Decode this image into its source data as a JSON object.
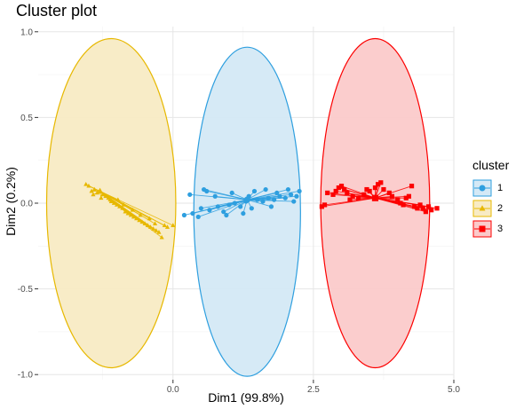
{
  "chart_data": {
    "type": "scatter",
    "title": "Cluster plot",
    "xlabel": "Dim1 (99.8%)",
    "ylabel": "Dim2 (0.2%)",
    "xlim": [
      -2.4,
      5.0
    ],
    "ylim": [
      -1.03,
      1.03
    ],
    "xticks": [
      0.0,
      2.5,
      5.0
    ],
    "xtick_labels": [
      "0.0",
      "2.5",
      "5.0"
    ],
    "yticks": [
      -1.0,
      -0.5,
      0.0,
      0.5,
      1.0
    ],
    "ytick_labels": [
      "-1.0",
      "-0.5",
      "0.0",
      "0.5",
      "1.0"
    ],
    "grid": true,
    "legend": {
      "title": "cluster",
      "placement": "right",
      "entries": [
        {
          "label": "1",
          "color": "#2E9FDF",
          "shape": "circle"
        },
        {
          "label": "2",
          "color": "#E7B800",
          "shape": "triangle"
        },
        {
          "label": "3",
          "color": "#FC0000",
          "shape": "square"
        }
      ]
    },
    "series": [
      {
        "name": "1",
        "color": "#2E9FDF",
        "fill": "#D4E9F6",
        "shape": "circle",
        "centroid": [
          1.32,
          0.02
        ],
        "ellipse": {
          "cx": 1.32,
          "cy": -0.05,
          "rx": 0.95,
          "ry": 0.96
        },
        "points": [
          [
            0.2,
            -0.07
          ],
          [
            0.35,
            -0.06
          ],
          [
            0.5,
            -0.03
          ],
          [
            0.65,
            -0.04
          ],
          [
            0.8,
            -0.02
          ],
          [
            0.9,
            -0.05
          ],
          [
            1.0,
            -0.01
          ],
          [
            1.1,
            0.0
          ],
          [
            1.2,
            -0.02
          ],
          [
            1.3,
            0.01
          ],
          [
            1.4,
            -0.03
          ],
          [
            1.5,
            0.02
          ],
          [
            1.6,
            0.01
          ],
          [
            1.7,
            0.03
          ],
          [
            1.8,
            0.02
          ],
          [
            1.9,
            0.04
          ],
          [
            2.0,
            0.03
          ],
          [
            2.1,
            0.05
          ],
          [
            2.2,
            0.04
          ],
          [
            0.3,
            0.05
          ],
          [
            0.45,
            -0.08
          ],
          [
            0.6,
            0.07
          ],
          [
            0.75,
            0.04
          ],
          [
            1.05,
            0.06
          ],
          [
            1.25,
            -0.06
          ],
          [
            1.45,
            0.07
          ],
          [
            1.65,
            0.08
          ],
          [
            1.85,
            0.06
          ],
          [
            2.05,
            0.08
          ],
          [
            0.55,
            0.08
          ],
          [
            0.95,
            -0.07
          ],
          [
            1.35,
            0.04
          ],
          [
            1.75,
            -0.02
          ],
          [
            2.15,
            0.01
          ],
          [
            2.25,
            0.07
          ]
        ]
      },
      {
        "name": "2",
        "color": "#E7B800",
        "fill": "#F8EBC4",
        "shape": "triangle",
        "centroid": [
          -1.3,
          0.07
        ],
        "ellipse": {
          "cx": -1.1,
          "cy": 0.0,
          "rx": 1.15,
          "ry": 0.96
        },
        "points": [
          [
            -1.5,
            0.1
          ],
          [
            -1.45,
            0.07
          ],
          [
            -1.4,
            0.08
          ],
          [
            -1.35,
            0.06
          ],
          [
            -1.3,
            0.07
          ],
          [
            -1.25,
            0.05
          ],
          [
            -1.2,
            0.04
          ],
          [
            -1.15,
            0.03
          ],
          [
            -1.1,
            0.01
          ],
          [
            -1.05,
            0.0
          ],
          [
            -1.0,
            -0.01
          ],
          [
            -0.95,
            -0.02
          ],
          [
            -0.9,
            -0.03
          ],
          [
            -0.85,
            -0.05
          ],
          [
            -0.8,
            -0.06
          ],
          [
            -0.75,
            -0.07
          ],
          [
            -0.7,
            -0.08
          ],
          [
            -0.65,
            -0.09
          ],
          [
            -0.6,
            -0.1
          ],
          [
            -0.55,
            -0.11
          ],
          [
            -0.5,
            -0.12
          ],
          [
            -0.45,
            -0.13
          ],
          [
            -0.4,
            -0.14
          ],
          [
            -0.35,
            -0.15
          ],
          [
            -0.3,
            -0.16
          ],
          [
            -0.25,
            -0.17
          ],
          [
            -0.2,
            -0.2
          ],
          [
            -0.15,
            -0.13
          ],
          [
            -0.1,
            -0.14
          ],
          [
            0.0,
            -0.13
          ],
          [
            -1.55,
            0.11
          ],
          [
            -1.42,
            0.05
          ],
          [
            -1.28,
            0.03
          ],
          [
            -1.12,
            0.02
          ],
          [
            -0.98,
            0.02
          ],
          [
            -0.88,
            -0.01
          ],
          [
            -0.72,
            -0.04
          ],
          [
            -0.58,
            -0.07
          ],
          [
            -0.42,
            -0.09
          ],
          [
            -0.32,
            -0.12
          ]
        ]
      },
      {
        "name": "3",
        "color": "#FC0000",
        "fill": "#FBCACA",
        "shape": "square",
        "centroid": [
          3.6,
          0.03
        ],
        "ellipse": {
          "cx": 3.6,
          "cy": 0.0,
          "rx": 0.97,
          "ry": 0.96
        },
        "points": [
          [
            2.65,
            -0.02
          ],
          [
            2.75,
            0.06
          ],
          [
            2.85,
            0.05
          ],
          [
            2.95,
            0.09
          ],
          [
            3.0,
            0.1
          ],
          [
            3.05,
            0.08
          ],
          [
            3.1,
            0.06
          ],
          [
            3.15,
            0.02
          ],
          [
            3.2,
            0.04
          ],
          [
            3.3,
            0.03
          ],
          [
            3.4,
            0.05
          ],
          [
            3.5,
            0.07
          ],
          [
            3.6,
            0.09
          ],
          [
            3.7,
            0.12
          ],
          [
            3.75,
            0.08
          ],
          [
            3.85,
            0.06
          ],
          [
            3.9,
            0.04
          ],
          [
            4.0,
            0.02
          ],
          [
            4.05,
            0.0
          ],
          [
            4.1,
            -0.01
          ],
          [
            4.2,
            0.04
          ],
          [
            4.25,
            0.1
          ],
          [
            4.3,
            -0.02
          ],
          [
            4.35,
            -0.03
          ],
          [
            4.4,
            -0.01
          ],
          [
            4.45,
            -0.03
          ],
          [
            4.5,
            -0.05
          ],
          [
            4.6,
            -0.04
          ],
          [
            4.7,
            -0.03
          ],
          [
            2.7,
            -0.01
          ],
          [
            2.9,
            0.07
          ],
          [
            3.45,
            0.08
          ],
          [
            3.65,
            0.11
          ],
          [
            4.15,
            0.03
          ],
          [
            4.55,
            -0.02
          ]
        ]
      }
    ]
  }
}
